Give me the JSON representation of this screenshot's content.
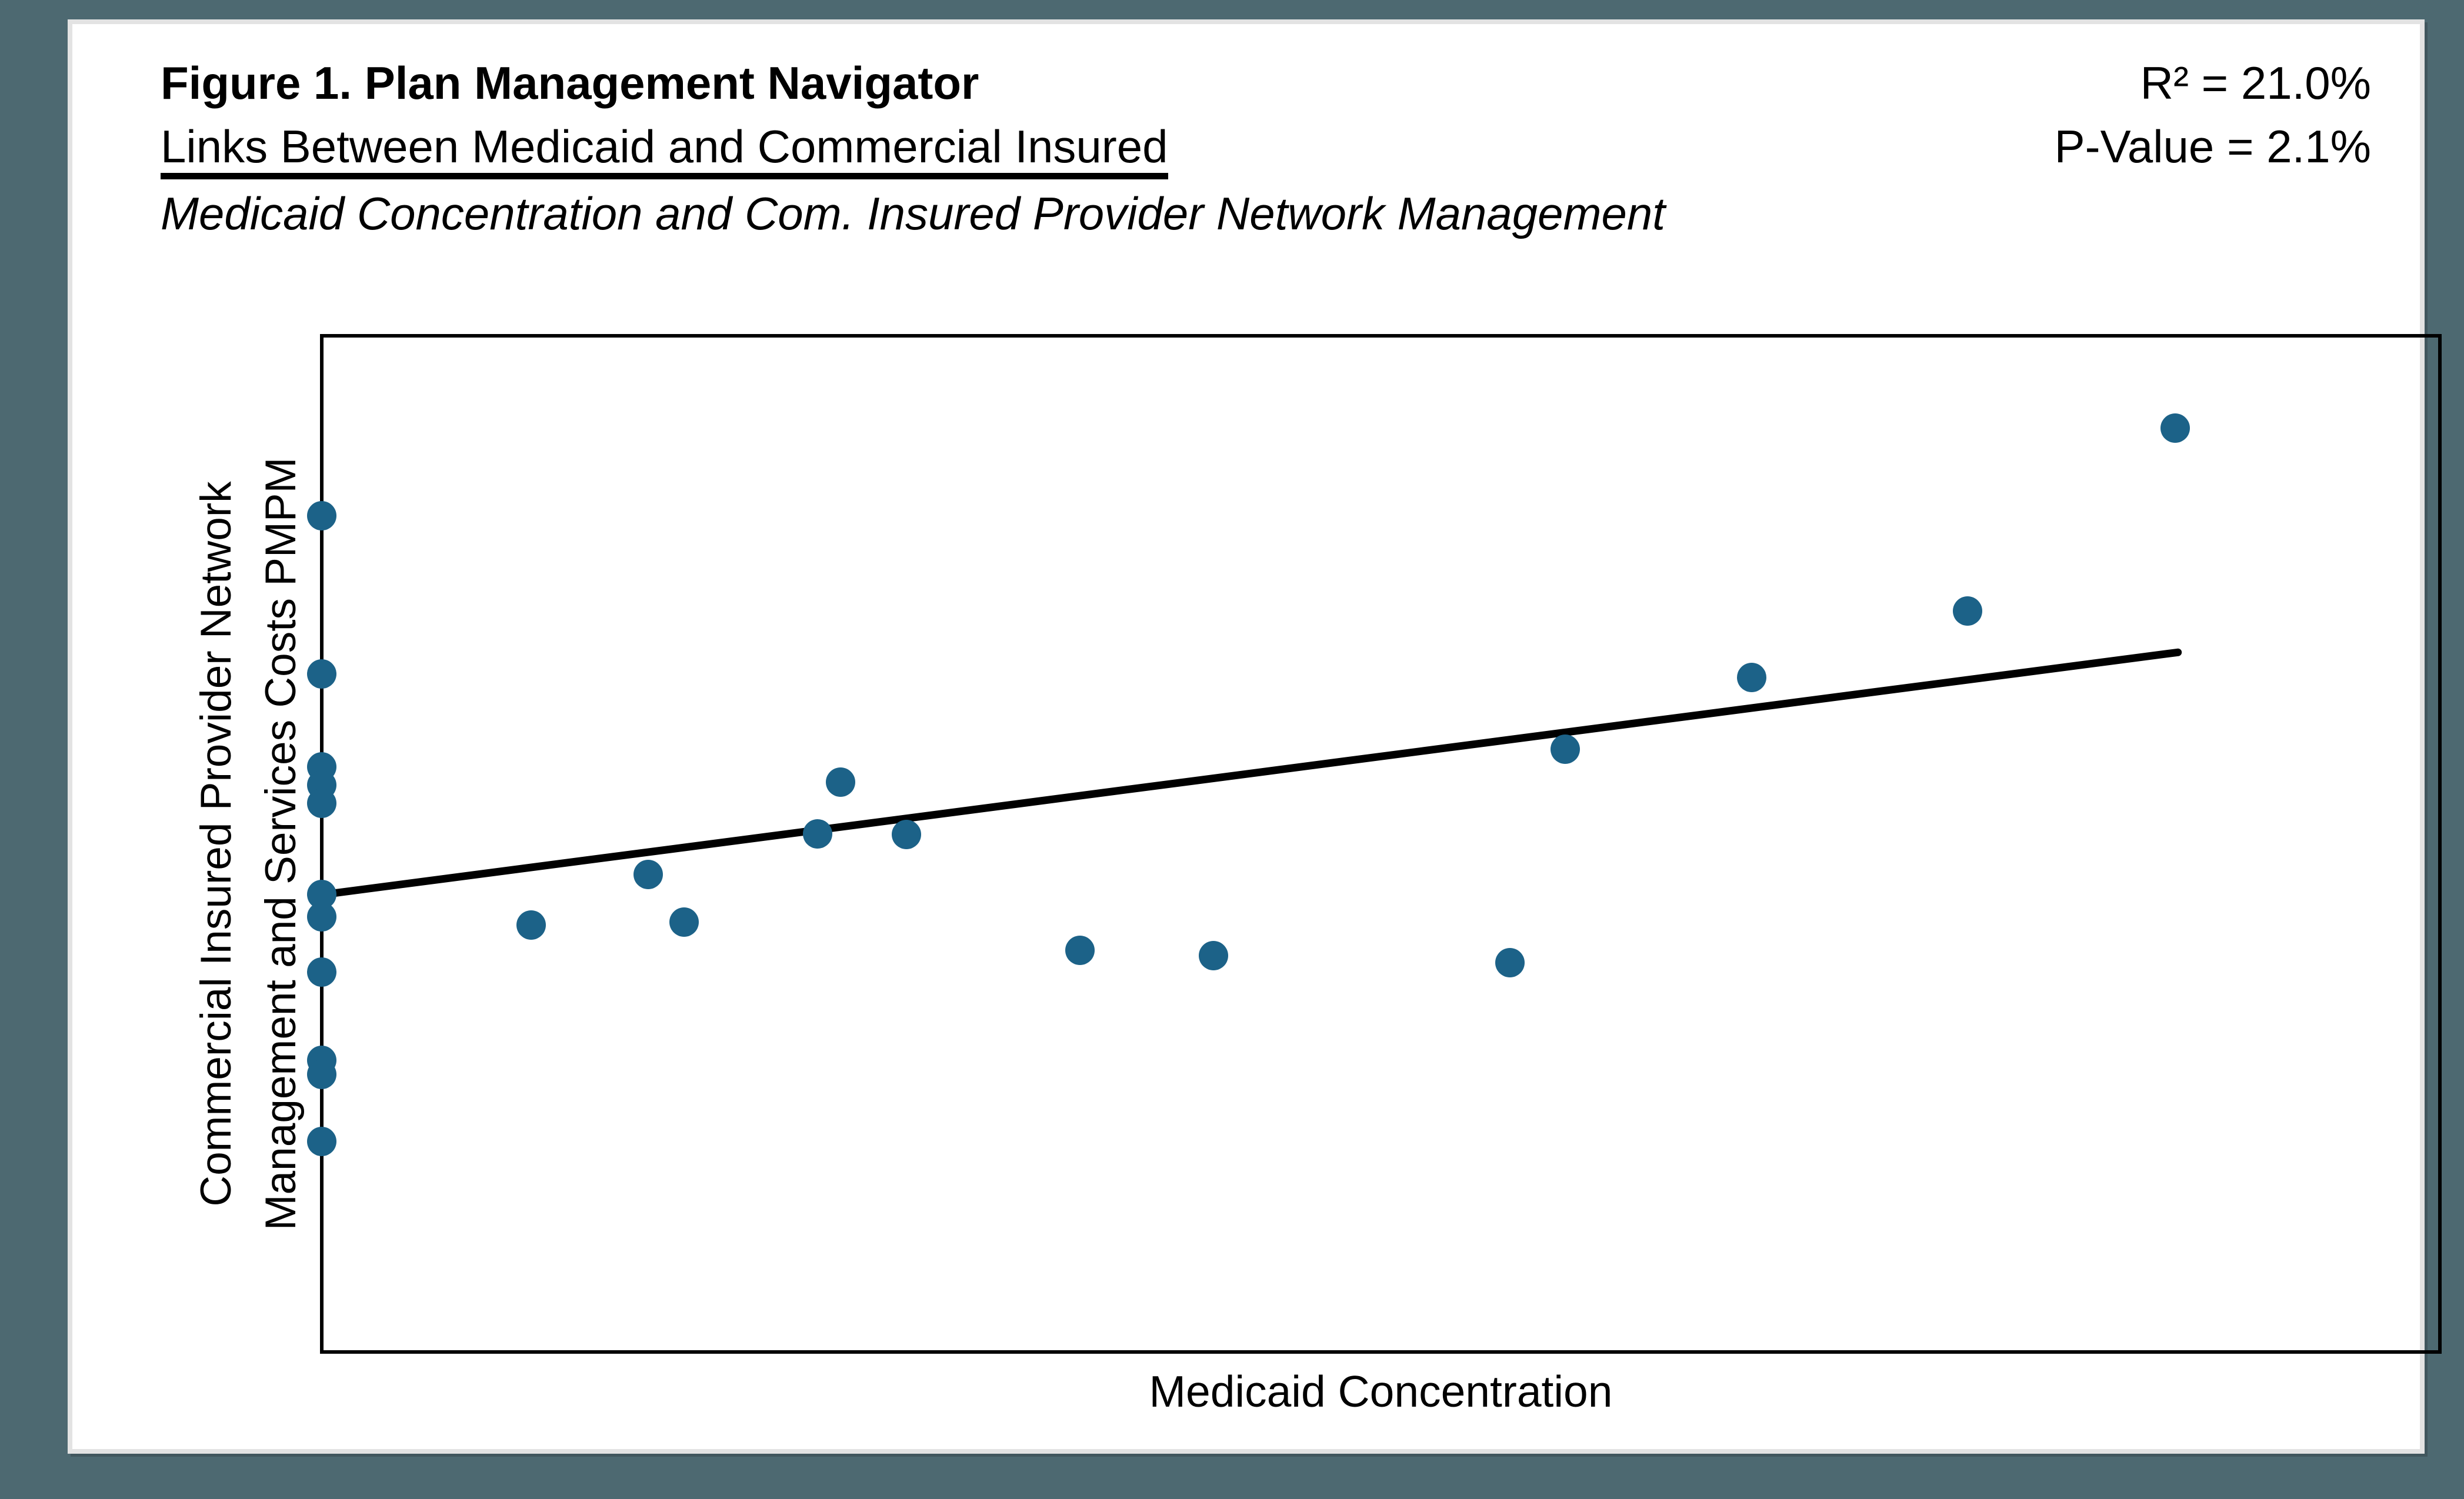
{
  "header": {
    "title": "Figure 1. Plan Management Navigator",
    "subtitle": "Links Between Medicaid and Commercial Insured",
    "subtitle_italic": "Medicaid Concentration and Com. Insured Provider Network Management",
    "stats": {
      "r_squared": "R² = 21.0%",
      "p_value": "P-Value = 2.1%"
    }
  },
  "chart_data": {
    "type": "scatter",
    "title": "Figure 1. Plan Management Navigator — Links Between Medicaid and Commercial Insured",
    "subtitle": "Medicaid Concentration and Com. Insured Provider Network Management",
    "xlabel": "Medicaid Concentration",
    "ylabel_line1": "Commercial Insured Provider Network",
    "ylabel_line2": "Management and Services Costs PMPM",
    "r_squared_pct": 21.0,
    "p_value_pct": 2.1,
    "axes_note": "No tick marks or numeric tick labels are shown; point coordinates are percentages of the plot area (x from left axis, y up from bottom axis).",
    "grid": false,
    "legend": false,
    "xlim_pct": [
      0,
      100
    ],
    "ylim_pct": [
      0,
      100
    ],
    "points_pct": [
      {
        "x": 0.0,
        "y": 82.3
      },
      {
        "x": 0.0,
        "y": 66.7
      },
      {
        "x": 0.0,
        "y": 57.6
      },
      {
        "x": 0.0,
        "y": 55.8
      },
      {
        "x": 0.0,
        "y": 54.0
      },
      {
        "x": 0.0,
        "y": 45.0
      },
      {
        "x": 0.0,
        "y": 42.8
      },
      {
        "x": 0.0,
        "y": 37.4
      },
      {
        "x": 0.0,
        "y": 28.7
      },
      {
        "x": 0.0,
        "y": 27.3
      },
      {
        "x": 0.0,
        "y": 20.7
      },
      {
        "x": 9.9,
        "y": 42.0
      },
      {
        "x": 15.4,
        "y": 47.0
      },
      {
        "x": 17.1,
        "y": 42.3
      },
      {
        "x": 23.4,
        "y": 51.0
      },
      {
        "x": 24.5,
        "y": 56.1
      },
      {
        "x": 27.6,
        "y": 50.9
      },
      {
        "x": 35.8,
        "y": 39.5
      },
      {
        "x": 42.1,
        "y": 39.0
      },
      {
        "x": 56.1,
        "y": 38.3
      },
      {
        "x": 58.7,
        "y": 59.3
      },
      {
        "x": 67.5,
        "y": 66.4
      },
      {
        "x": 77.7,
        "y": 72.9
      },
      {
        "x": 87.5,
        "y": 90.9
      }
    ],
    "trendline_pct": {
      "x1": 0.0,
      "y1": 45.0,
      "x2": 87.8,
      "y2": 68.9
    },
    "point_color": "#1c6288",
    "trendline_color": "#000000"
  },
  "colors": {
    "page_background": "#4d6971",
    "card_background": "#ffffff",
    "card_border": "#e3e3e3",
    "text": "#000000",
    "plot_border": "#000000"
  }
}
